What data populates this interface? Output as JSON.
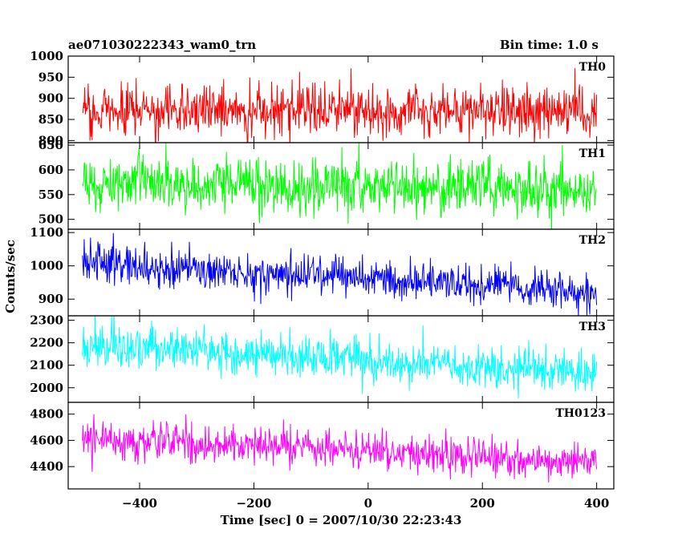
{
  "chart_data": {
    "type": "line",
    "title": "ae071030222343_wam0_trn",
    "subtitle": "Bin time: 1.0 s",
    "xlabel": "Time [sec] 0 = 2007/10/30 22:23:43",
    "ylabel": "Counts/sec",
    "xlim": [
      -525,
      430
    ],
    "x_ticks": [
      -400,
      -200,
      0,
      200,
      400
    ],
    "x_step": 1.0,
    "x_start": -500,
    "x_end": 400,
    "grid": false,
    "panels": [
      {
        "name": "TH0",
        "color": "#ff0000",
        "ylim": [
          795,
          1000
        ],
        "yticks": [
          800,
          850,
          900,
          950,
          1000
        ],
        "trend_start": 870,
        "trend_end": 870,
        "noise_sd": 32
      },
      {
        "name": "TH1",
        "color": "#00ff00",
        "ylim": [
          480,
          655
        ],
        "yticks": [
          500,
          550,
          600,
          650
        ],
        "trend_start": 575,
        "trend_end": 560,
        "noise_sd": 28
      },
      {
        "name": "TH2",
        "color": "#0000ff",
        "ylim": [
          850,
          1110
        ],
        "yticks": [
          900,
          1000,
          1100
        ],
        "trend_start": 1005,
        "trend_end": 925,
        "noise_sd": 30
      },
      {
        "name": "TH3",
        "color": "#00ffff",
        "ylim": [
          1935,
          2320
        ],
        "yticks": [
          2000,
          2100,
          2200,
          2300
        ],
        "trend_start": 2190,
        "trend_end": 2060,
        "noise_sd": 47
      },
      {
        "name": "TH0123",
        "color": "#ff00ff",
        "ylim": [
          4230,
          4890
        ],
        "yticks": [
          4400,
          4600,
          4800
        ],
        "trend_start": 4620,
        "trend_end": 4430,
        "noise_sd": 70
      }
    ]
  }
}
